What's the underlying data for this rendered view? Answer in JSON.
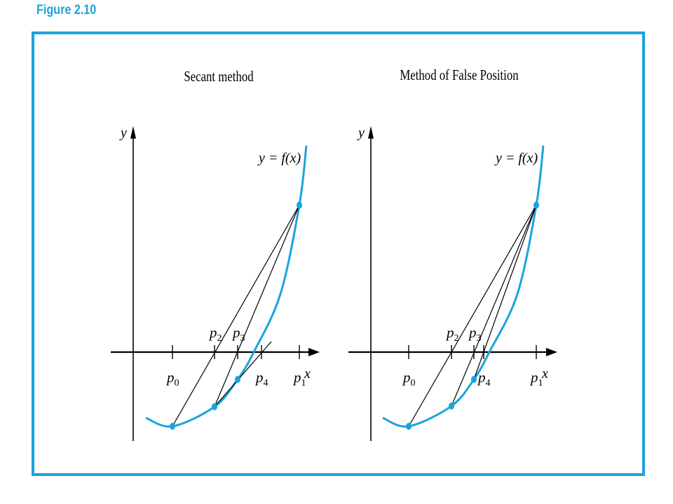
{
  "figure": {
    "label": "Figure 2.10",
    "frame_color": "#1aa3dd"
  },
  "colors": {
    "curve": "#1aa3dd",
    "lines": "#000000"
  },
  "panels": [
    {
      "title": "Secant method",
      "curve_label": "y = f(x)",
      "x_axis_label": "x",
      "y_axis_label": "y",
      "points": [
        {
          "name": "p",
          "sub": "0"
        },
        {
          "name": "p",
          "sub": "1"
        },
        {
          "name": "p",
          "sub": "2"
        },
        {
          "name": "p",
          "sub": "3"
        },
        {
          "name": "p",
          "sub": "4"
        }
      ]
    },
    {
      "title": "Method of False Position",
      "curve_label": "y = f(x)",
      "x_axis_label": "x",
      "y_axis_label": "y",
      "points": [
        {
          "name": "p",
          "sub": "0"
        },
        {
          "name": "p",
          "sub": "1"
        },
        {
          "name": "p",
          "sub": "2"
        },
        {
          "name": "p",
          "sub": "3"
        },
        {
          "name": "p",
          "sub": "4"
        }
      ]
    }
  ]
}
